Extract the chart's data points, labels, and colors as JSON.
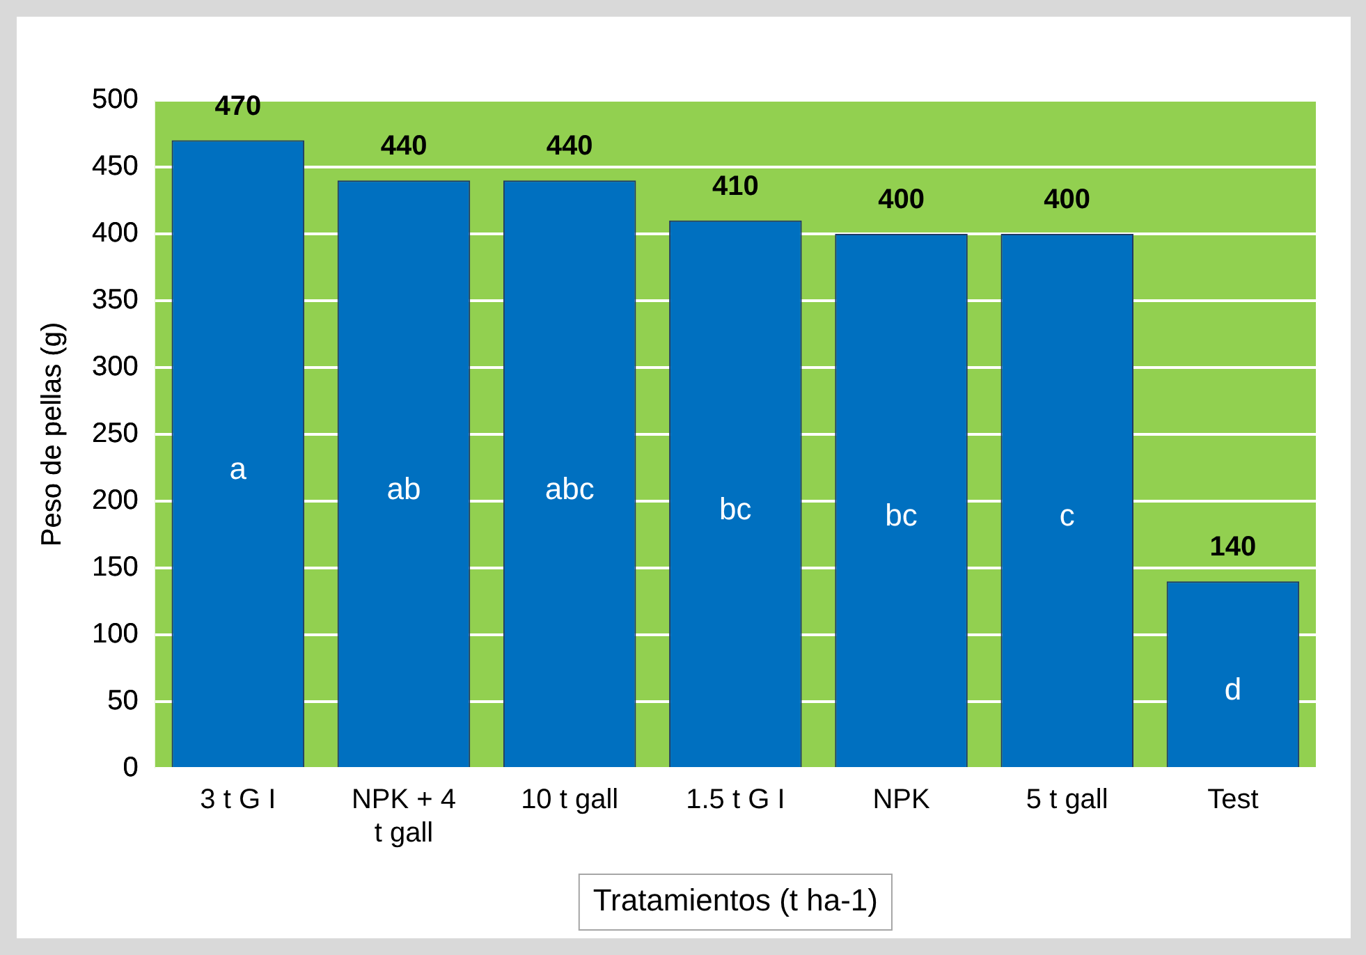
{
  "chart_data": {
    "type": "bar",
    "ylabel": "Peso de pellas (g)",
    "xlabel": "Tratamientos (t ha-1)",
    "categories": [
      "3 t G I",
      "NPK + 4 t gall",
      "10 t gall",
      "1.5 t G I",
      "NPK",
      "5 t gall",
      "Test"
    ],
    "values": [
      470,
      440,
      440,
      410,
      400,
      400,
      140
    ],
    "color": "#0070c0",
    "data_labels": true,
    "ylim": [
      0,
      500
    ],
    "yticks": [
      0,
      50,
      100,
      150,
      200,
      250,
      300,
      350,
      400,
      450,
      500
    ],
    "grid": "y",
    "legend": false,
    "annotations": [
      "a",
      "ab",
      "abc",
      "bc",
      "bc",
      "c",
      "d"
    ],
    "bands": [
      {
        "axis": "y",
        "from": 0,
        "to": 500,
        "color": "#92d050"
      }
    ]
  }
}
